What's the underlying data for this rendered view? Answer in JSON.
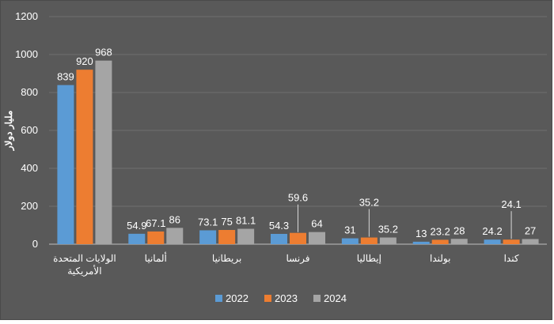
{
  "chart_data": {
    "type": "bar",
    "title": "",
    "xlabel": "",
    "ylabel": "مليار دولار",
    "ylim": [
      0,
      1200
    ],
    "yticks": [
      0,
      200,
      400,
      600,
      800,
      1000,
      1200
    ],
    "grid": true,
    "legend_position": "bottom",
    "categories": [
      [
        "الولايات المتحدة",
        "الأمريكية"
      ],
      [
        "ألمانيا"
      ],
      [
        "بريطانيا"
      ],
      [
        "فرنسا"
      ],
      [
        "إيطاليا"
      ],
      [
        "بولندا"
      ],
      [
        "كندا"
      ]
    ],
    "series": [
      {
        "name": "2022",
        "color": "#5b9bd5",
        "values": [
          839,
          54.9,
          73.1,
          54.3,
          31,
          13,
          24.2
        ]
      },
      {
        "name": "2023",
        "color": "#ed7d31",
        "values": [
          920,
          67.1,
          75,
          59.6,
          35.2,
          23.2,
          24.1
        ]
      },
      {
        "name": "2024",
        "color": "#a5a5a5",
        "values": [
          968,
          86,
          81.1,
          64,
          35.2,
          28,
          27
        ]
      }
    ],
    "data_labels": [
      [
        "839",
        "54.9",
        "73.1",
        "54.3",
        "31",
        "13",
        "24.2"
      ],
      [
        "920",
        "67.1",
        "75",
        "59.6",
        "35.2",
        "23.2",
        "24.1"
      ],
      [
        "968",
        "86",
        "81.1",
        "64",
        "35.2",
        "28",
        "27"
      ]
    ],
    "callout_labels": [
      {
        "series": 1,
        "category": 3
      },
      {
        "series": 1,
        "category": 4
      },
      {
        "series": 1,
        "category": 6
      }
    ]
  }
}
